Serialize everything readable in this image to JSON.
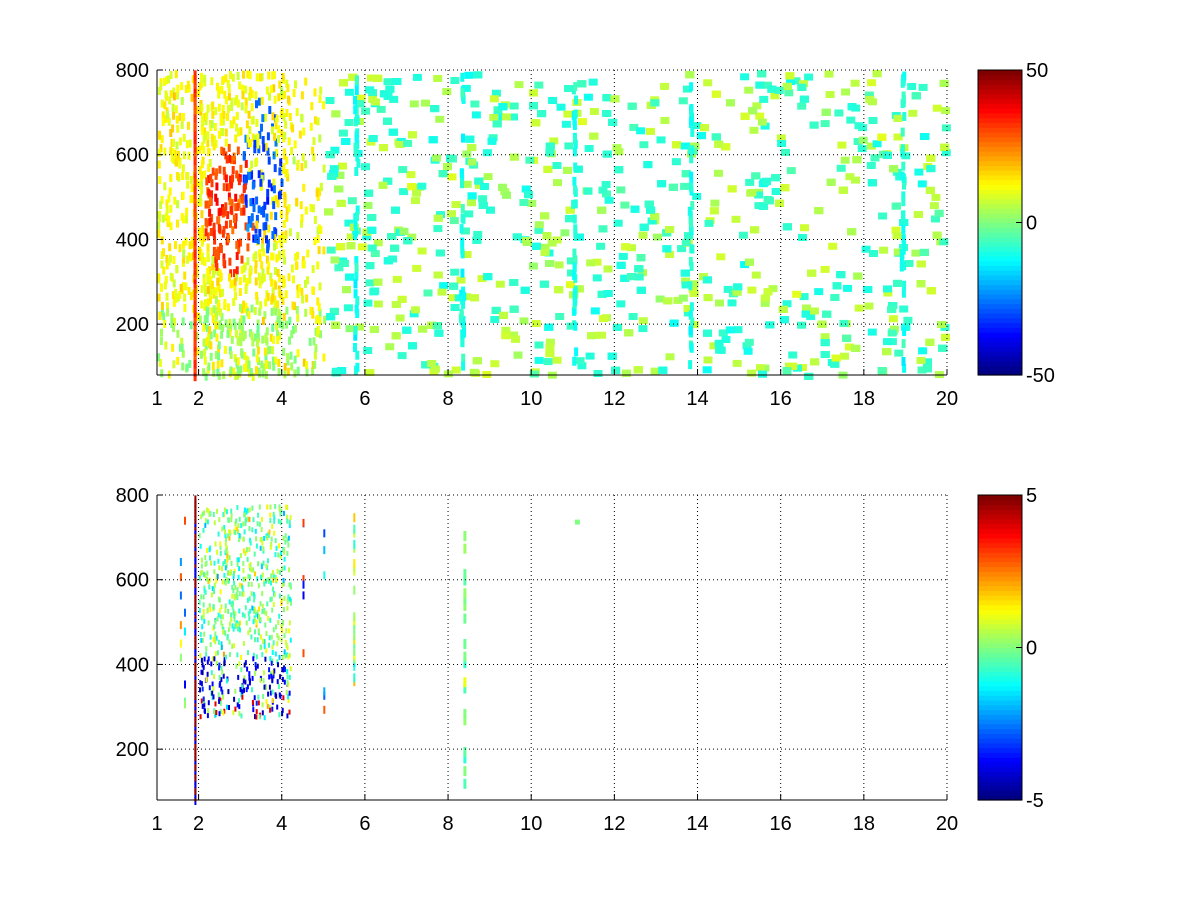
{
  "chart_data": [
    {
      "type": "heatmap",
      "panel": "top",
      "title": "",
      "xlabel": "",
      "ylabel": "",
      "xlim": [
        1,
        20
      ],
      "ylim": [
        80,
        800
      ],
      "xticks": [
        1,
        2,
        4,
        6,
        8,
        10,
        12,
        14,
        16,
        18,
        20
      ],
      "yticks": [
        200,
        400,
        600,
        800
      ],
      "grid": true,
      "colormap": "jet",
      "colorbar": {
        "range": [
          -50,
          50
        ],
        "ticks": [
          50,
          0,
          -50
        ]
      },
      "approximate_regions": [
        {
          "x_range": [
            1.0,
            5.0
          ],
          "y_range": [
            80,
            800
          ],
          "value": 10,
          "note": "dense mostly positive values"
        },
        {
          "x_range": [
            2.2,
            3.2
          ],
          "y_range": [
            350,
            600
          ],
          "value": 35,
          "note": "positive peak"
        },
        {
          "x_range": [
            3.0,
            4.0
          ],
          "y_range": [
            400,
            800
          ],
          "value": -30,
          "note": "negative peak"
        },
        {
          "x_range": [
            1.85,
            1.95
          ],
          "y_range": [
            80,
            800
          ],
          "value": 30,
          "note": "vertical positive line"
        },
        {
          "x_range": [
            5.5,
            20.0
          ],
          "y_range": [
            80,
            800
          ],
          "value": 0,
          "note": "sparse near-zero scatter"
        }
      ]
    },
    {
      "type": "heatmap",
      "panel": "bottom",
      "title": "",
      "xlabel": "",
      "ylabel": "",
      "xlim": [
        1,
        20
      ],
      "ylim": [
        80,
        800
      ],
      "xticks": [
        1,
        2,
        4,
        6,
        8,
        10,
        12,
        14,
        16,
        18,
        20
      ],
      "yticks": [
        200,
        400,
        600,
        800
      ],
      "grid": true,
      "colormap": "jet",
      "colorbar": {
        "range": [
          -5,
          5
        ],
        "ticks": [
          5,
          0,
          -5
        ]
      },
      "approximate_regions": [
        {
          "x_range": [
            2.0,
            4.2
          ],
          "y_range": [
            280,
            780
          ],
          "value": -1,
          "note": "mixed values cluster"
        },
        {
          "x_range": [
            1.85,
            1.95
          ],
          "y_range": [
            80,
            800
          ],
          "value": 5,
          "note": "vertical line"
        },
        {
          "x_range": [
            5.7,
            5.75
          ],
          "y_range": [
            370,
            800
          ],
          "value": 1,
          "note": "sparse column"
        },
        {
          "x_range": [
            8.35,
            8.4
          ],
          "y_range": [
            130,
            760
          ],
          "value": 0,
          "note": "sparse column"
        },
        {
          "x_range": [
            11.0,
            11.1
          ],
          "y_range": [
            730,
            745
          ],
          "value": 0,
          "note": "isolated point"
        }
      ]
    }
  ]
}
